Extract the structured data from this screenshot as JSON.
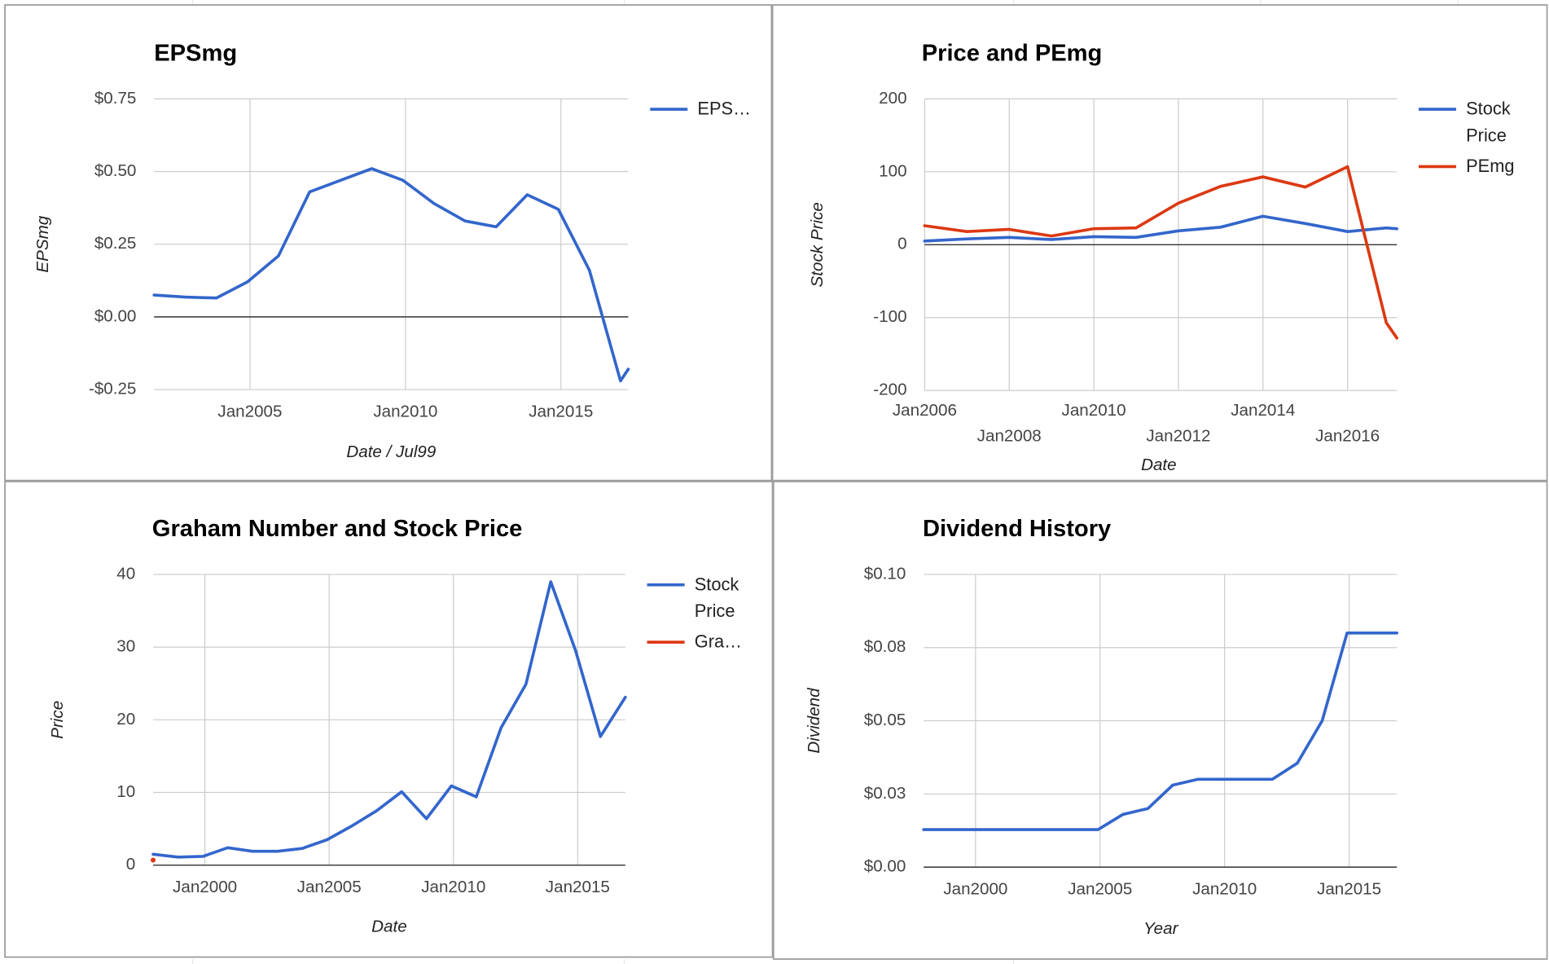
{
  "chart_data": [
    {
      "type": "line",
      "title": "EPSmg",
      "x_label": "Date / Jul99",
      "y_label": "EPSmg",
      "x": [
        "2001-12",
        "2002-12",
        "2003-12",
        "2004-12",
        "2005-12",
        "2006-12",
        "2007-12",
        "2008-12",
        "2009-12",
        "2010-12",
        "2011-12",
        "2012-12",
        "2013-12",
        "2014-12",
        "2015-12",
        "2016-12",
        "2017-03"
      ],
      "series": [
        {
          "name": "EPS…",
          "color": "#3366cc",
          "values": [
            0.075,
            0.068,
            0.065,
            0.12,
            0.21,
            0.43,
            0.47,
            0.51,
            0.47,
            0.39,
            0.33,
            0.31,
            0.42,
            0.37,
            0.16,
            -0.22,
            -0.18
          ]
        }
      ],
      "xlim": [
        "2001-12",
        "2017-03"
      ],
      "xticks": [
        {
          "value": "2005-01",
          "label": "Jan2005"
        },
        {
          "value": "2010-01",
          "label": "Jan2010"
        },
        {
          "value": "2015-01",
          "label": "Jan2015"
        }
      ],
      "ylim": [
        -0.25,
        0.75
      ],
      "yticks": [
        {
          "value": 0.75,
          "label": "$0.75"
        },
        {
          "value": 0.5,
          "label": "$0.50"
        },
        {
          "value": 0.25,
          "label": "$0.25"
        },
        {
          "value": 0,
          "label": "$0.00"
        },
        {
          "value": -0.25,
          "label": "-$0.25"
        }
      ],
      "grid": true
    },
    {
      "type": "line",
      "title": "Price and PEmg",
      "x_label": "Date",
      "y_label": "Stock Price",
      "x": [
        "2006-01",
        "2007-01",
        "2008-01",
        "2009-01",
        "2010-01",
        "2011-01",
        "2012-01",
        "2013-01",
        "2014-01",
        "2015-01",
        "2016-01",
        "2016-12",
        "2017-03"
      ],
      "series": [
        {
          "name": "Stock Price",
          "color": "#3366cc",
          "values": [
            5,
            8,
            10,
            7,
            11,
            10,
            19,
            24,
            39,
            29,
            18,
            23,
            22
          ]
        },
        {
          "name": "PEmg",
          "color": "#dc3912",
          "values": [
            26,
            18,
            21,
            12,
            22,
            23,
            57,
            80,
            93,
            79,
            107,
            -107,
            -128
          ]
        }
      ],
      "xlim": [
        "2006-01",
        "2017-03"
      ],
      "xticks": [
        {
          "value": "2006-01",
          "label": "Jan2006"
        },
        {
          "value": "2008-01",
          "label": "Jan2008"
        },
        {
          "value": "2010-01",
          "label": "Jan2010"
        },
        {
          "value": "2012-01",
          "label": "Jan2012"
        },
        {
          "value": "2014-01",
          "label": "Jan2014"
        },
        {
          "value": "2016-01",
          "label": "Jan2016"
        }
      ],
      "ylim": [
        -200,
        200
      ],
      "yticks": [
        200,
        100,
        0,
        -100,
        -200
      ],
      "grid": true
    },
    {
      "type": "line",
      "title": "Graham Number and Stock Price",
      "x_label": "Date",
      "y_label": "Price",
      "x": [
        "1997-12",
        "1998-12",
        "1999-12",
        "2000-12",
        "2001-12",
        "2002-12",
        "2003-12",
        "2004-12",
        "2005-12",
        "2006-12",
        "2007-12",
        "2008-12",
        "2009-12",
        "2010-12",
        "2011-12",
        "2012-12",
        "2013-12",
        "2014-12",
        "2015-12",
        "2016-12"
      ],
      "series": [
        {
          "name": "Stock Price",
          "color": "#3366cc",
          "values": [
            1.5,
            1.1,
            1.2,
            2.4,
            1.9,
            1.9,
            2.3,
            3.5,
            5.4,
            7.5,
            10.1,
            6.4,
            10.9,
            9.4,
            18.9,
            24.9,
            39,
            29.5,
            17.7,
            23.1
          ]
        },
        {
          "name": "Gra…",
          "color": "#dc3912",
          "values": [
            0.7,
            null,
            null,
            null,
            null,
            null,
            null,
            null,
            null,
            null,
            null,
            null,
            null,
            null,
            null,
            null,
            null,
            null,
            null,
            null
          ]
        }
      ],
      "xlim": [
        "1997-12",
        "2016-12"
      ],
      "xticks": [
        {
          "value": "2000-01",
          "label": "Jan2000"
        },
        {
          "value": "2005-01",
          "label": "Jan2005"
        },
        {
          "value": "2010-01",
          "label": "Jan2010"
        },
        {
          "value": "2015-01",
          "label": "Jan2015"
        }
      ],
      "ylim": [
        0,
        40
      ],
      "yticks": [
        40,
        30,
        20,
        10,
        0
      ],
      "grid": true
    },
    {
      "type": "line",
      "title": "Dividend History",
      "x_label": "Year",
      "y_label": "Dividend",
      "x": [
        "1997-12",
        "1998-12",
        "1999-12",
        "2000-12",
        "2001-12",
        "2002-12",
        "2003-12",
        "2004-12",
        "2005-12",
        "2006-12",
        "2007-12",
        "2008-12",
        "2009-12",
        "2010-12",
        "2011-12",
        "2012-12",
        "2013-12",
        "2014-12",
        "2015-12",
        "2016-12"
      ],
      "series": [
        {
          "name": "Dividend",
          "color": "#3366cc",
          "values": [
            0.0128,
            0.0128,
            0.0128,
            0.0128,
            0.0128,
            0.0128,
            0.0128,
            0.0128,
            0.018,
            0.02,
            0.028,
            0.03,
            0.03,
            0.03,
            0.03,
            0.0355,
            0.05,
            0.08,
            0.08,
            0.08
          ]
        }
      ],
      "show_legend": false,
      "xlim": [
        "1997-12",
        "2016-12"
      ],
      "xticks": [
        {
          "value": "2000-01",
          "label": "Jan2000"
        },
        {
          "value": "2005-01",
          "label": "Jan2005"
        },
        {
          "value": "2010-01",
          "label": "Jan2010"
        },
        {
          "value": "2015-01",
          "label": "Jan2015"
        }
      ],
      "ylim": [
        0,
        0.1
      ],
      "yticks": [
        {
          "value": 0.1,
          "label": "$0.10"
        },
        {
          "value": 0.075,
          "label": "$0.08"
        },
        {
          "value": 0.05,
          "label": "$0.05"
        },
        {
          "value": 0.025,
          "label": "$0.03"
        },
        {
          "value": 0,
          "label": "$0.00"
        }
      ],
      "grid": true
    }
  ]
}
